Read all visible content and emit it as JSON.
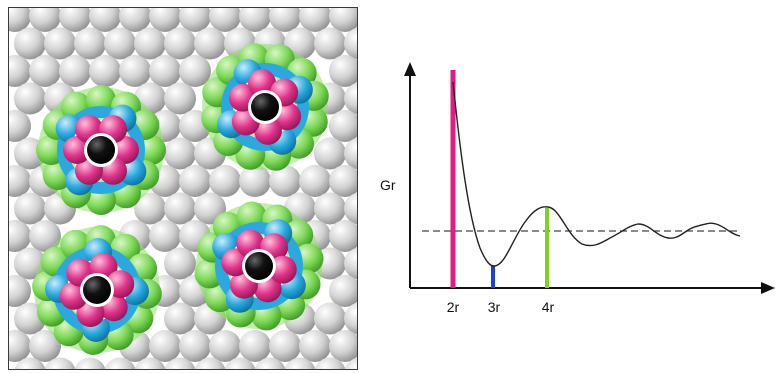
{
  "colors": {
    "gray_particle": "#c9c9c9",
    "green_shell": "#7ed957",
    "blue_shell": "#29a9df",
    "pink_shell": "#e0338a",
    "core": "#111111",
    "first_peak_line": "#e21c85",
    "second_min_line": "#1f3fd6",
    "third_peak_line": "#7ed321",
    "curve": "#222222",
    "reference_line": "#444444"
  },
  "particle_panel": {
    "clusters": [
      {
        "name": "cluster-top-left"
      },
      {
        "name": "cluster-top-right"
      },
      {
        "name": "cluster-bottom-left"
      },
      {
        "name": "cluster-bottom-right"
      }
    ]
  },
  "chart": {
    "ylabel": "Gr",
    "ticks": [
      "2r",
      "3r",
      "4r"
    ]
  }
}
